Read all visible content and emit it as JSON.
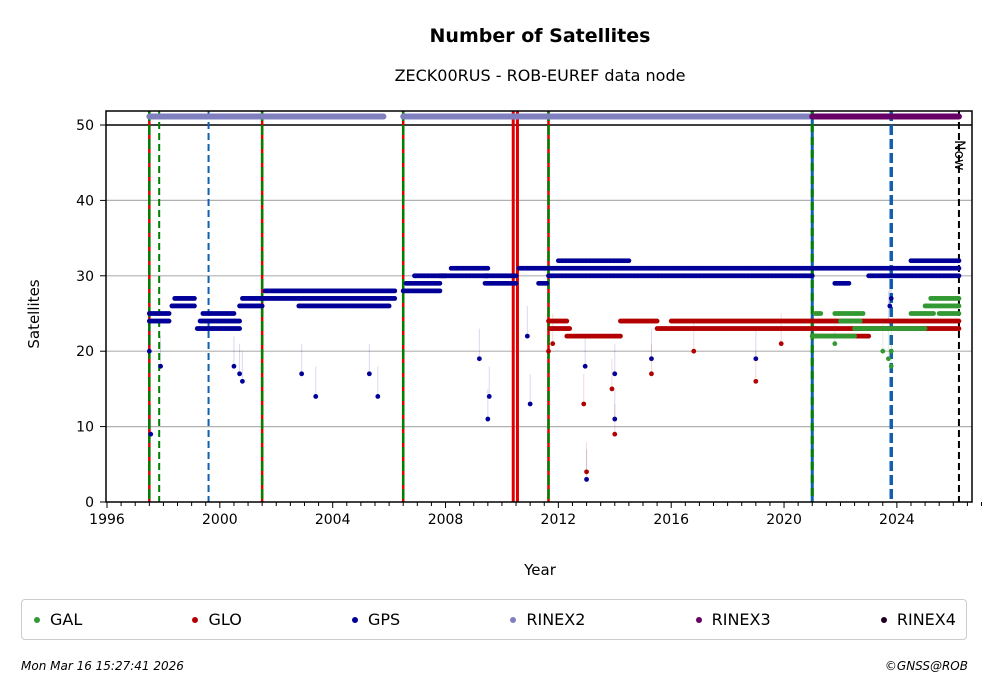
{
  "chart_data": {
    "type": "scatter",
    "title": "Number of Satellites",
    "subtitle": "ZECK00RUS - ROB-EUREF data node",
    "xlabel": "Year",
    "ylabel": "Satellites",
    "xlim": [
      1996,
      2027
    ],
    "ylim": [
      0,
      52
    ],
    "xticks": [
      1996,
      2000,
      2004,
      2008,
      2012,
      2016,
      2020,
      2024
    ],
    "yticks": [
      0,
      10,
      20,
      30,
      40,
      50
    ],
    "grid": "horizontal",
    "now_label": "Now",
    "now_year": 2026.2,
    "colors": {
      "GAL": "#339933",
      "GLO": "#b30000",
      "GPS": "#000099",
      "RINEX2": "#8080c0",
      "RINEX3": "#660066",
      "RINEX4": "#220022"
    },
    "rinex_bars": [
      {
        "name": "RINEX2",
        "start": 1997.5,
        "end": 2005.8,
        "value": 51
      },
      {
        "name": "RINEX2",
        "start": 2006.5,
        "end": 2021.0,
        "value": 51
      },
      {
        "name": "RINEX3",
        "start": 2021.0,
        "end": 2026.2,
        "value": 51
      }
    ],
    "events": [
      {
        "year": 1997.5,
        "style": "red-green"
      },
      {
        "year": 1997.85,
        "style": "green"
      },
      {
        "year": 1999.6,
        "style": "blue"
      },
      {
        "year": 2001.5,
        "style": "red-green"
      },
      {
        "year": 2006.5,
        "style": "red-green"
      },
      {
        "year": 2010.4,
        "style": "red-solid"
      },
      {
        "year": 2010.55,
        "style": "red-solid"
      },
      {
        "year": 2011.65,
        "style": "red-green"
      },
      {
        "year": 2021.0,
        "style": "green-blue"
      },
      {
        "year": 2023.8,
        "style": "blue-thick"
      },
      {
        "year": 2026.2,
        "style": "black"
      }
    ],
    "series": [
      {
        "name": "GPS",
        "segments": [
          [
            1997.5,
            1998.2,
            24
          ],
          [
            1997.5,
            1998.2,
            25
          ],
          [
            1998.3,
            1999.1,
            26
          ],
          [
            1998.4,
            1999.1,
            27
          ],
          [
            1999.2,
            2000.7,
            23
          ],
          [
            1999.3,
            2000.7,
            24
          ],
          [
            1999.4,
            2000.5,
            25
          ],
          [
            2000.7,
            2001.5,
            26
          ],
          [
            2000.8,
            2001.5,
            27
          ],
          [
            2001.5,
            2006.2,
            27
          ],
          [
            2001.6,
            2006.2,
            28
          ],
          [
            2002.8,
            2006.0,
            26
          ],
          [
            2006.5,
            2007.8,
            28
          ],
          [
            2006.6,
            2007.8,
            29
          ],
          [
            2006.9,
            2008.0,
            30
          ],
          [
            2007.8,
            2009.5,
            30
          ],
          [
            2008.2,
            2009.5,
            31
          ],
          [
            2009.4,
            2010.5,
            29
          ],
          [
            2009.4,
            2010.5,
            30
          ],
          [
            2010.6,
            2011.6,
            31
          ],
          [
            2011.3,
            2011.6,
            29
          ],
          [
            2011.65,
            2026.2,
            31
          ],
          [
            2011.65,
            2021.0,
            30
          ],
          [
            2012.0,
            2014.5,
            32
          ],
          [
            2021.8,
            2022.3,
            29
          ],
          [
            2023.0,
            2026.2,
            30
          ],
          [
            2024.5,
            2026.2,
            32
          ]
        ],
        "points": [
          [
            1997.5,
            20
          ],
          [
            1997.55,
            9
          ],
          [
            1997.9,
            18
          ],
          [
            2000.5,
            18
          ],
          [
            2000.7,
            17
          ],
          [
            2000.8,
            16
          ],
          [
            2002.9,
            17
          ],
          [
            2003.4,
            14
          ],
          [
            2005.3,
            17
          ],
          [
            2005.6,
            14
          ],
          [
            2009.2,
            19
          ],
          [
            2009.5,
            11
          ],
          [
            2009.55,
            14
          ],
          [
            2010.9,
            22
          ],
          [
            2011.0,
            13
          ],
          [
            2012.95,
            18
          ],
          [
            2013.0,
            3
          ],
          [
            2014.0,
            11
          ],
          [
            2014.0,
            17
          ],
          [
            2015.3,
            19
          ],
          [
            2019.0,
            19
          ],
          [
            2023.7,
            24
          ],
          [
            2023.75,
            26
          ],
          [
            2023.8,
            27
          ]
        ]
      },
      {
        "name": "GLO",
        "segments": [
          [
            2011.65,
            2012.3,
            24
          ],
          [
            2011.7,
            2012.4,
            23
          ],
          [
            2012.3,
            2014.2,
            22
          ],
          [
            2014.2,
            2015.5,
            24
          ],
          [
            2015.5,
            2026.2,
            23
          ],
          [
            2016.0,
            2026.2,
            24
          ],
          [
            2021.0,
            2023.0,
            22
          ]
        ],
        "points": [
          [
            2011.65,
            20
          ],
          [
            2011.8,
            21
          ],
          [
            2012.9,
            13
          ],
          [
            2013.0,
            4
          ],
          [
            2013.9,
            15
          ],
          [
            2014.0,
            9
          ],
          [
            2015.3,
            17
          ],
          [
            2016.8,
            20
          ],
          [
            2019.0,
            16
          ],
          [
            2019.9,
            21
          ]
        ]
      },
      {
        "name": "GAL",
        "segments": [
          [
            2021.0,
            2022.5,
            22
          ],
          [
            2021.1,
            2021.3,
            25
          ],
          [
            2021.8,
            2022.8,
            25
          ],
          [
            2022.0,
            2022.7,
            24
          ],
          [
            2022.5,
            2025.0,
            23
          ],
          [
            2024.5,
            2025.3,
            25
          ],
          [
            2025.0,
            2026.2,
            26
          ],
          [
            2025.2,
            2026.2,
            27
          ],
          [
            2025.5,
            2026.2,
            25
          ]
        ],
        "points": [
          [
            2021.8,
            21
          ],
          [
            2023.5,
            20
          ],
          [
            2023.7,
            19
          ],
          [
            2023.8,
            18
          ],
          [
            2023.8,
            20
          ]
        ]
      }
    ]
  },
  "legend": [
    {
      "label": "GAL",
      "color": "#339933"
    },
    {
      "label": "GLO",
      "color": "#b30000"
    },
    {
      "label": "GPS",
      "color": "#000099"
    },
    {
      "label": "RINEX2",
      "color": "#8080c0"
    },
    {
      "label": "RINEX3",
      "color": "#660066"
    },
    {
      "label": "RINEX4",
      "color": "#220022"
    }
  ],
  "footer": {
    "timestamp": "Mon Mar 16 15:27:41 2026",
    "credit": "©GNSS@ROB"
  }
}
